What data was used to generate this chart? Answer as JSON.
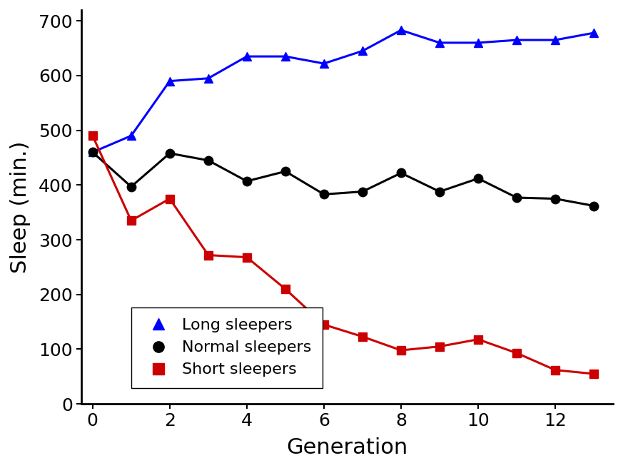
{
  "generations": [
    0,
    1,
    2,
    3,
    4,
    5,
    6,
    7,
    8,
    9,
    10,
    11,
    12,
    13
  ],
  "long_sleepers": [
    460,
    490,
    590,
    595,
    635,
    635,
    622,
    645,
    683,
    660,
    660,
    665,
    665,
    678
  ],
  "normal_sleepers": [
    460,
    397,
    458,
    445,
    407,
    425,
    383,
    388,
    422,
    388,
    412,
    377,
    375,
    362
  ],
  "short_sleepers": [
    490,
    335,
    375,
    272,
    268,
    210,
    145,
    123,
    98,
    105,
    118,
    93,
    62,
    55
  ],
  "long_color": "#0000FF",
  "normal_color": "#000000",
  "short_color": "#CC0000",
  "xlabel": "Generation",
  "ylabel": "Sleep (min.)",
  "xlim": [
    -0.3,
    13.5
  ],
  "ylim": [
    0,
    720
  ],
  "yticks": [
    0,
    100,
    200,
    300,
    400,
    500,
    600,
    700
  ],
  "xticks": [
    0,
    2,
    4,
    6,
    8,
    10,
    12
  ],
  "legend_labels": [
    "Long sleepers",
    "Normal sleepers",
    "Short sleepers"
  ],
  "background_color": "#ffffff",
  "linewidth": 2.2,
  "markersize": 9
}
